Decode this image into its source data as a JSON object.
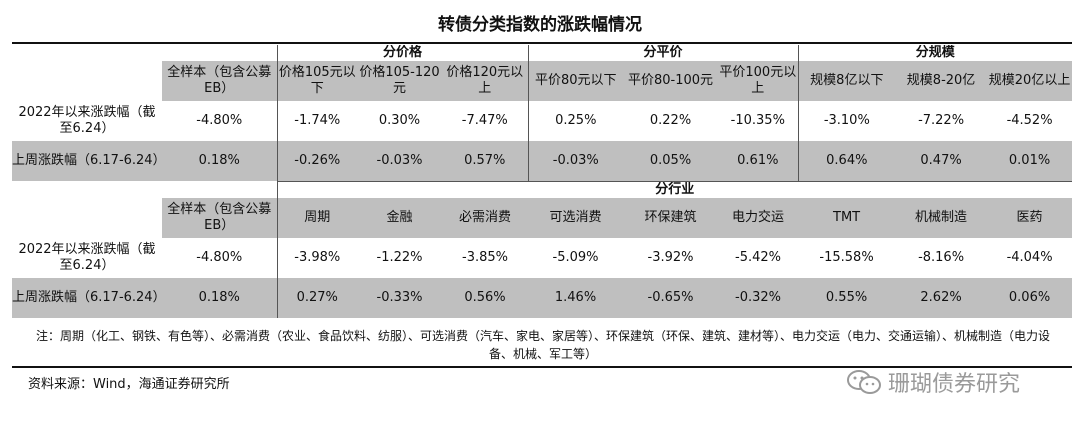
{
  "title": "转债分类指数的涨跌幅情况",
  "groups1": {
    "price": "分价格",
    "par": "分平价",
    "scale": "分规模"
  },
  "header1": [
    "全样本（包含公募EB）",
    "价格105元以下",
    "价格105-120元",
    "价格120元以上",
    "平价80元以下",
    "平价80-100元",
    "平价100元以上",
    "规模8亿以下",
    "规模8-20亿",
    "规模20亿以上"
  ],
  "row_labels": {
    "ytd": "2022年以来涨跌幅（截至6.24）",
    "week": "上周涨跌幅（6.17-6.24）"
  },
  "t1": {
    "ytd": [
      "-4.80%",
      "-1.74%",
      "0.30%",
      "-7.47%",
      "0.25%",
      "0.22%",
      "-10.35%",
      "-3.10%",
      "-7.22%",
      "-4.52%"
    ],
    "week": [
      "0.18%",
      "-0.26%",
      "-0.03%",
      "0.57%",
      "-0.03%",
      "0.05%",
      "0.61%",
      "0.64%",
      "0.47%",
      "0.01%"
    ]
  },
  "group2": "分行业",
  "header2": [
    "全样本（包含公募EB）",
    "周期",
    "金融",
    "必需消费",
    "可选消费",
    "环保建筑",
    "电力交运",
    "TMT",
    "机械制造",
    "医药"
  ],
  "t2": {
    "ytd": [
      "-4.80%",
      "-3.98%",
      "-1.22%",
      "-3.85%",
      "-5.09%",
      "-3.92%",
      "-5.42%",
      "-15.58%",
      "-8.16%",
      "-4.04%"
    ],
    "week": [
      "0.18%",
      "0.27%",
      "-0.33%",
      "0.56%",
      "1.46%",
      "-0.65%",
      "-0.32%",
      "0.55%",
      "2.62%",
      "0.06%"
    ]
  },
  "note": "注：周期（化工、钢铁、有色等）、必需消费（农业、食品饮料、纺服）、可选消费（汽车、家电、家居等）、环保建筑（环保、建筑、建材等）、电力交运（电力、交通运输）、机械制造（电力设备、机械、军工等）",
  "source": "资料来源：Wind，海通证券研究所",
  "watermark": "珊瑚债券研究"
}
